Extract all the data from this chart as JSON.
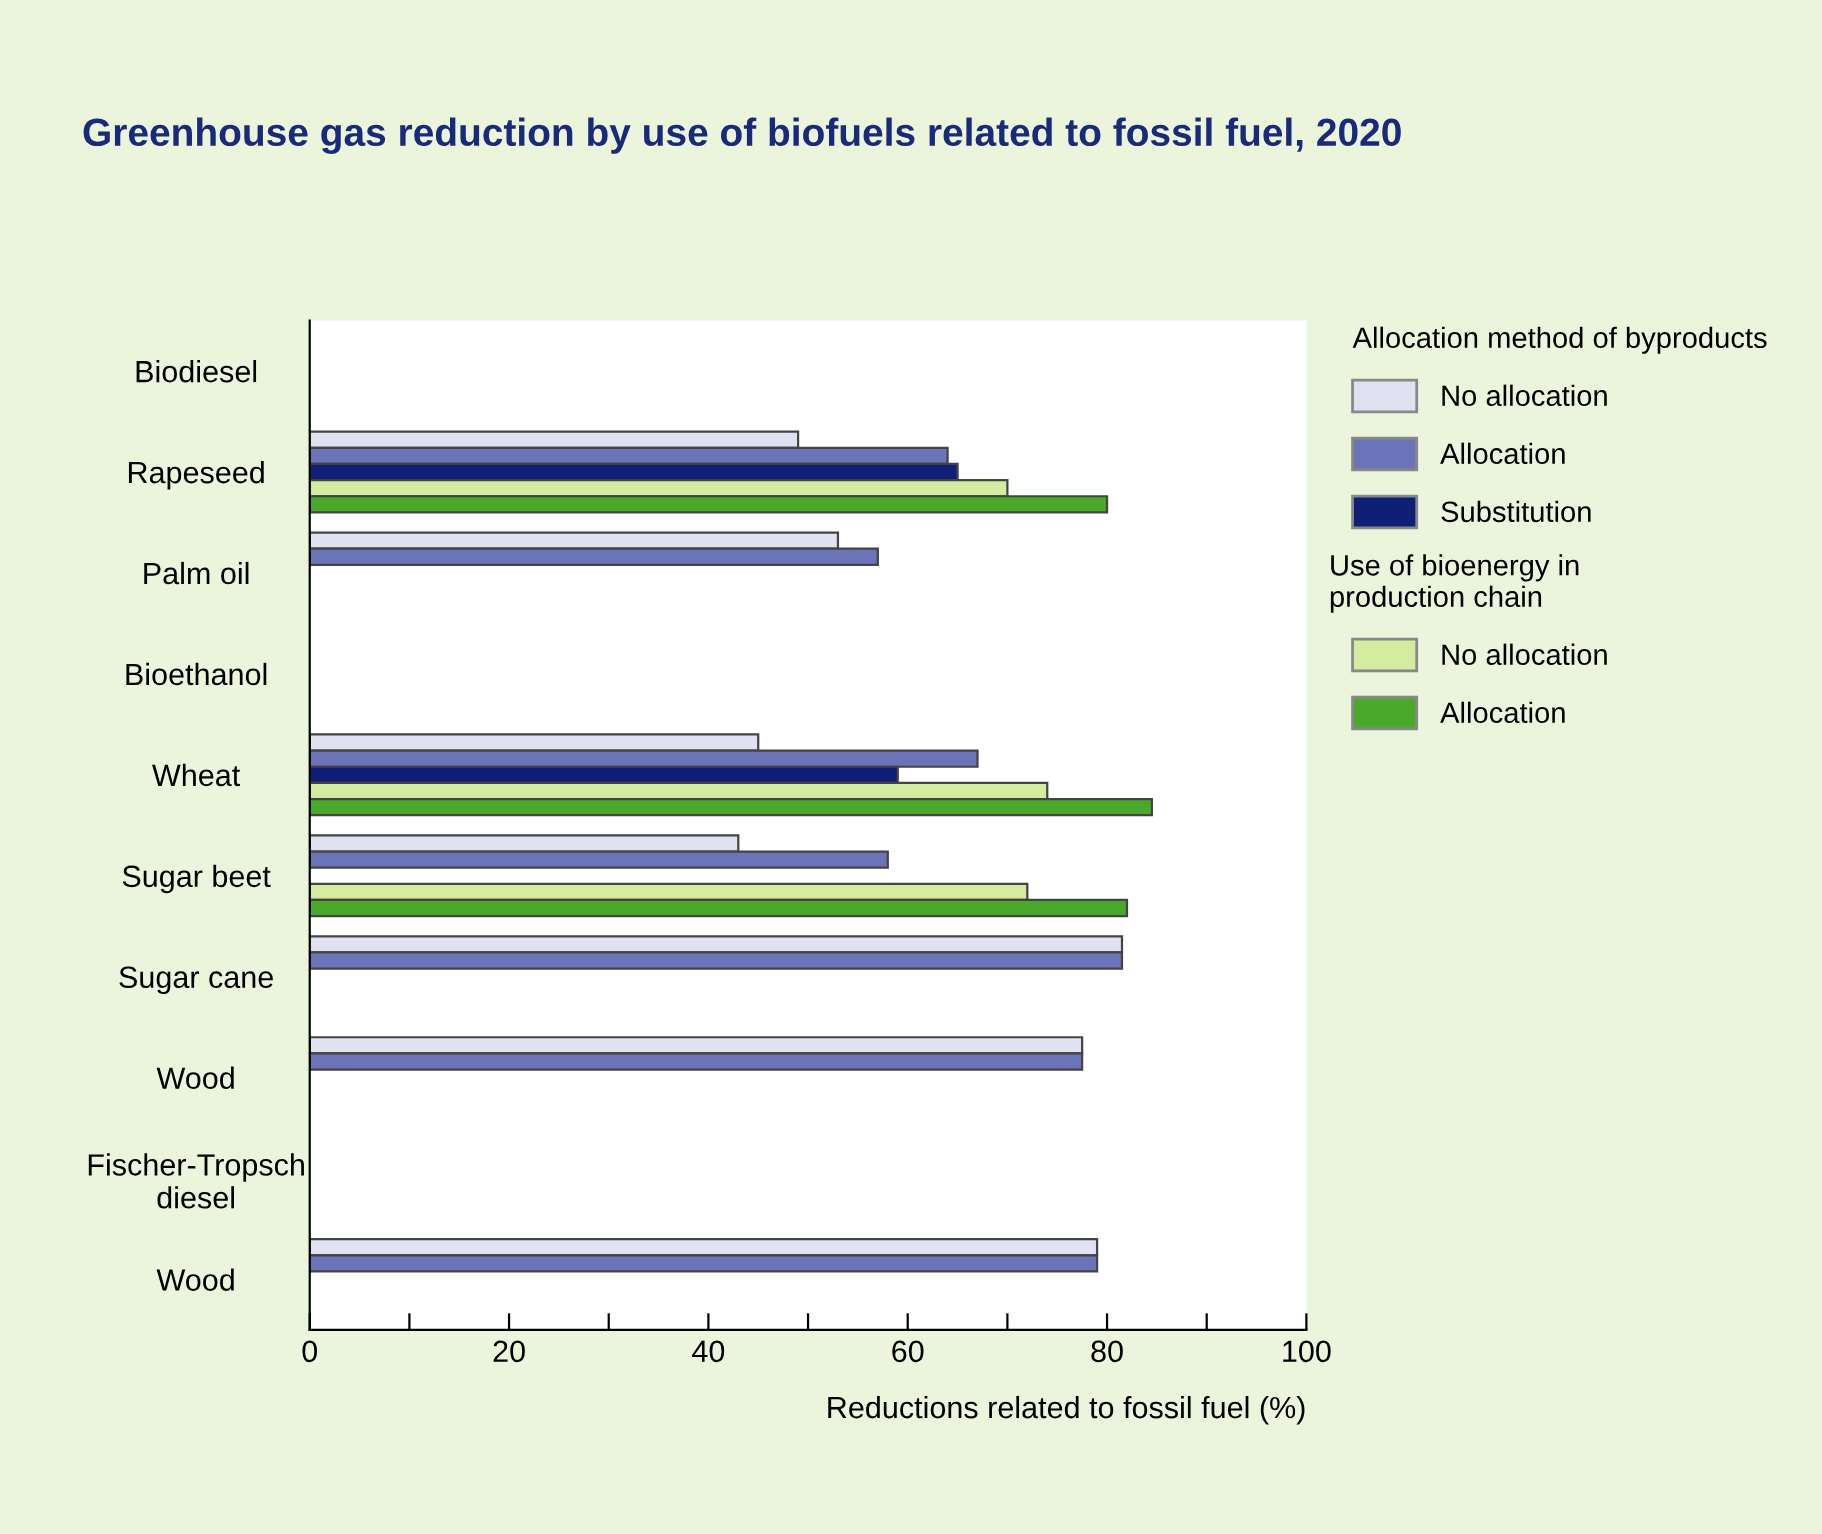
{
  "chart_data": {
    "type": "bar",
    "orientation": "horizontal",
    "title": "Greenhouse gas reduction by use of biofuels related to fossil fuel, 2020",
    "xlabel": "Reductions related to fossil fuel (%)",
    "legend_title": "Allocation method of byproducts",
    "annotations": [
      "Use of bioenergy in\nproduction chain"
    ],
    "categories": [
      "Biodiesel",
      "Rapeseed",
      "Palm oil",
      "Bioethanol",
      "Wheat",
      "Sugar beet",
      "Sugar cane",
      "Wood",
      "Fischer-Tropsch\ndiesel",
      "Wood"
    ],
    "series": [
      {
        "name": "No allocation",
        "color": "#e0e2f2",
        "values": [
          null,
          49,
          53,
          null,
          45,
          43,
          81.5,
          77.5,
          null,
          79
        ]
      },
      {
        "name": "Allocation",
        "color": "#6b74b8",
        "values": [
          null,
          64,
          57,
          null,
          67,
          58,
          81.5,
          77.5,
          null,
          79
        ]
      },
      {
        "name": "Substitution",
        "color": "#0f1f78",
        "values": [
          null,
          65,
          null,
          null,
          59,
          null,
          null,
          null,
          null,
          null
        ]
      },
      {
        "name": "No allocation",
        "color": "#d4eca0",
        "values": [
          null,
          70,
          null,
          null,
          74,
          72,
          null,
          null,
          null,
          null
        ]
      },
      {
        "name": "Allocation",
        "color": "#4aa82a",
        "values": [
          null,
          80,
          null,
          null,
          84.5,
          82,
          null,
          null,
          null,
          null
        ]
      }
    ],
    "xlim": [
      0,
      100
    ],
    "xticks": [
      0,
      {
        "value": 10,
        "label": null
      },
      20,
      {
        "value": 30,
        "label": null
      },
      40,
      {
        "value": 50,
        "label": null
      },
      60,
      {
        "value": 70,
        "label": null
      },
      80,
      {
        "value": 90,
        "label": null
      },
      100
    ],
    "grid": false,
    "legend": "right"
  }
}
